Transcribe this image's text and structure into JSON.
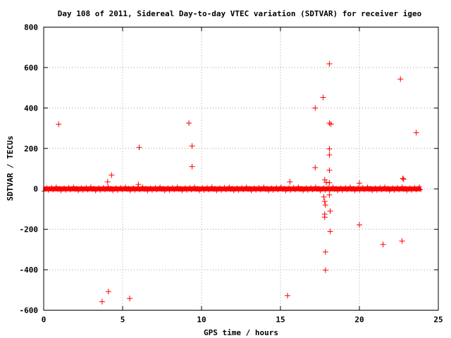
{
  "chart_data": {
    "type": "scatter",
    "title": "Day 108 of 2011, Sidereal Day-to-day VTEC variation (SDTVAR) for receiver igeo",
    "xlabel": "GPS time / hours",
    "ylabel": "SDTVAR / TECUs",
    "xlim": [
      0,
      25
    ],
    "ylim": [
      -600,
      800
    ],
    "xticks": [
      "0",
      "5",
      "10",
      "15",
      "20",
      "25"
    ],
    "yticks": [
      "-600",
      "-400",
      "-200",
      "0",
      "200",
      "400",
      "600",
      "800"
    ],
    "grid": true,
    "marker": "+",
    "color": "#ff0000",
    "band": {
      "x_start": 0.0,
      "x_end": 23.9,
      "y_low": -12,
      "y_high": 12
    },
    "points": [
      {
        "x": 0.95,
        "y": 320
      },
      {
        "x": 3.7,
        "y": -558
      },
      {
        "x": 4.05,
        "y": 35
      },
      {
        "x": 4.1,
        "y": -508
      },
      {
        "x": 4.3,
        "y": 68
      },
      {
        "x": 5.45,
        "y": -542
      },
      {
        "x": 6.0,
        "y": 22
      },
      {
        "x": 6.05,
        "y": 205
      },
      {
        "x": 9.2,
        "y": 325
      },
      {
        "x": 9.4,
        "y": 212
      },
      {
        "x": 9.4,
        "y": 110
      },
      {
        "x": 15.45,
        "y": -528
      },
      {
        "x": 15.6,
        "y": 35
      },
      {
        "x": 17.2,
        "y": 400
      },
      {
        "x": 17.2,
        "y": 105
      },
      {
        "x": 17.7,
        "y": 452
      },
      {
        "x": 17.75,
        "y": -40
      },
      {
        "x": 17.8,
        "y": 45
      },
      {
        "x": 17.8,
        "y": -62
      },
      {
        "x": 17.8,
        "y": -125
      },
      {
        "x": 17.8,
        "y": -140
      },
      {
        "x": 17.85,
        "y": -80
      },
      {
        "x": 17.85,
        "y": -312
      },
      {
        "x": 17.85,
        "y": -402
      },
      {
        "x": 17.9,
        "y": 32
      },
      {
        "x": 18.1,
        "y": 618
      },
      {
        "x": 18.1,
        "y": 325
      },
      {
        "x": 18.1,
        "y": 198
      },
      {
        "x": 18.1,
        "y": 168
      },
      {
        "x": 18.1,
        "y": 92
      },
      {
        "x": 18.1,
        "y": 30
      },
      {
        "x": 18.1,
        "y": -30
      },
      {
        "x": 18.15,
        "y": -110
      },
      {
        "x": 18.15,
        "y": -210
      },
      {
        "x": 18.2,
        "y": 320
      },
      {
        "x": 20.0,
        "y": 28
      },
      {
        "x": 20.0,
        "y": -178
      },
      {
        "x": 21.5,
        "y": -275
      },
      {
        "x": 22.6,
        "y": 543
      },
      {
        "x": 22.75,
        "y": 52
      },
      {
        "x": 22.8,
        "y": 48
      },
      {
        "x": 22.7,
        "y": -258
      },
      {
        "x": 23.6,
        "y": 278
      }
    ]
  }
}
